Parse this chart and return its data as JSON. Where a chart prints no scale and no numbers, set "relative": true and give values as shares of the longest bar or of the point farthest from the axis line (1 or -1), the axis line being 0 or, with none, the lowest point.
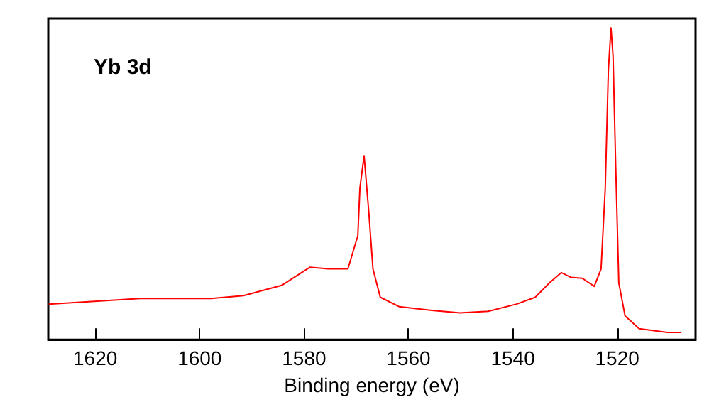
{
  "chart_data": {
    "type": "line",
    "relative": true,
    "xlabel": "Binding energy (eV)",
    "annotations": [
      "Yb 3d"
    ],
    "xlim": [
      1629,
      1505
    ],
    "xticks": [
      1620,
      1600,
      1580,
      1560,
      1540,
      1520
    ],
    "x": [
      1628.9,
      1611.4,
      1597.8,
      1591.6,
      1584.3,
      1578.9,
      1575.4,
      1571.6,
      1569.7,
      1569.3,
      1568.5,
      1567.6,
      1566.8,
      1565.4,
      1561.8,
      1555.5,
      1550.1,
      1544.7,
      1539.3,
      1535.7,
      1533.0,
      1530.7,
      1528.9,
      1526.7,
      1524.4,
      1523.1,
      1522.3,
      1521.7,
      1521.2,
      1520.8,
      1520.3,
      1519.7,
      1518.5,
      1515.8,
      1510.4,
      1507.7
    ],
    "series": [
      {
        "color": "#ff0000",
        "values": [
          0.114,
          0.132,
          0.132,
          0.141,
          0.174,
          0.232,
          0.227,
          0.227,
          0.333,
          0.486,
          0.59,
          0.41,
          0.227,
          0.136,
          0.106,
          0.094,
          0.086,
          0.091,
          0.114,
          0.136,
          0.182,
          0.215,
          0.2,
          0.197,
          0.171,
          0.227,
          0.485,
          0.864,
          1.0,
          0.909,
          0.56,
          0.182,
          0.076,
          0.035,
          0.023,
          0.023
        ]
      }
    ],
    "grid": false,
    "marker": "none",
    "line_style": "solid"
  }
}
